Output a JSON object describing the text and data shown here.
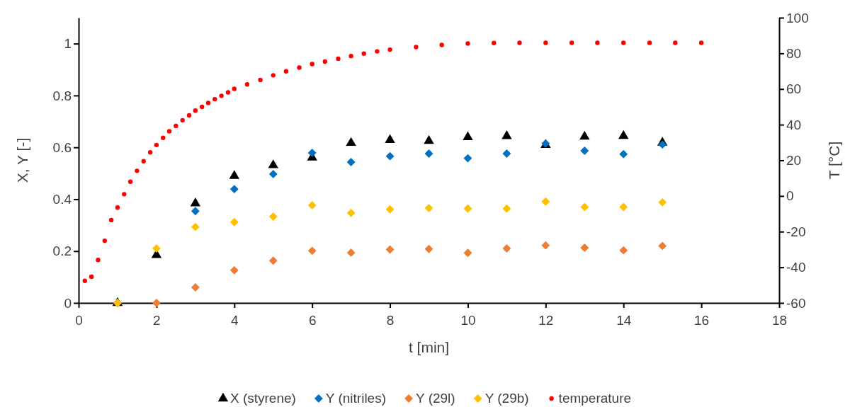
{
  "chart_data": {
    "type": "scatter",
    "xlabel": "t [min]",
    "ylabel": "X, Y [-]",
    "y2label": "T [°C]",
    "xlim": [
      0,
      18
    ],
    "xticks": [
      0,
      2,
      4,
      6,
      8,
      10,
      12,
      14,
      16,
      18
    ],
    "ylim": [
      0,
      1.1
    ],
    "yticks": [
      0,
      0.2,
      0.4,
      0.6,
      0.8,
      1
    ],
    "y2lim": [
      -60,
      100
    ],
    "y2ticks": [
      -60,
      -40,
      -20,
      0,
      20,
      40,
      60,
      80,
      100
    ],
    "grid": false,
    "legend": "bottom",
    "series": [
      {
        "name": "X (styrene)",
        "color": "#000000",
        "marker": "triangle",
        "x": [
          1,
          2,
          3,
          4,
          5,
          6,
          7,
          8,
          9,
          10,
          11,
          12,
          13,
          14,
          15
        ],
        "values": [
          0,
          0.185,
          0.384,
          0.49,
          0.531,
          0.561,
          0.617,
          0.628,
          0.625,
          0.639,
          0.643,
          0.609,
          0.641,
          0.644,
          0.618
        ]
      },
      {
        "name": "Y (nitriles)",
        "color": "#0070c0",
        "marker": "diamond",
        "x": [
          1,
          2,
          3,
          4,
          5,
          6,
          7,
          8,
          9,
          10,
          11,
          12,
          13,
          14,
          15
        ],
        "values": [
          0,
          null,
          0.354,
          0.439,
          0.497,
          0.579,
          0.543,
          0.566,
          0.576,
          0.558,
          0.576,
          0.615,
          0.587,
          0.574,
          0.611
        ]
      },
      {
        "name": "Y (29l)",
        "color": "#ed7d31",
        "marker": "diamond",
        "x": [
          1,
          2,
          3,
          4,
          5,
          6,
          7,
          8,
          9,
          10,
          11,
          12,
          13,
          14,
          15
        ],
        "values": [
          0,
          0,
          0.06,
          0.126,
          0.163,
          0.201,
          0.194,
          0.206,
          0.208,
          0.193,
          0.21,
          0.222,
          0.213,
          0.203,
          0.22
        ]
      },
      {
        "name": "Y (29b)",
        "color": "#ffc000",
        "marker": "diamond",
        "x": [
          1,
          2,
          3,
          4,
          5,
          6,
          7,
          8,
          9,
          10,
          11,
          12,
          13,
          14,
          15
        ],
        "values": [
          0,
          0.21,
          0.293,
          0.312,
          0.333,
          0.377,
          0.347,
          0.361,
          0.366,
          0.364,
          0.364,
          0.391,
          0.37,
          0.37,
          0.388
        ]
      },
      {
        "name": "temperature",
        "color": "#ff0000",
        "marker": "circle",
        "axis": "y2",
        "x": [
          0.16,
          0.33,
          0.5,
          0.67,
          0.84,
          1.0,
          1.17,
          1.33,
          1.5,
          1.67,
          1.84,
          2.0,
          2.17,
          2.33,
          2.5,
          2.67,
          2.84,
          3.0,
          3.17,
          3.33,
          3.5,
          3.67,
          3.84,
          4.0,
          4.33,
          4.67,
          5.0,
          5.33,
          5.67,
          6.0,
          6.33,
          6.67,
          7.0,
          7.33,
          7.67,
          8.0,
          8.67,
          9.33,
          10.0,
          10.67,
          11.33,
          12.0,
          12.67,
          13.33,
          14.0,
          14.67,
          15.33,
          16.0
        ],
        "values": [
          -47.6,
          -45.3,
          -35.9,
          -25.1,
          -13.5,
          -6.5,
          1.0,
          8.0,
          14.1,
          19.5,
          24.5,
          28.6,
          32.6,
          36.3,
          39.3,
          42.5,
          45.2,
          47.9,
          50.0,
          52.2,
          54.3,
          56.2,
          58.1,
          60.1,
          62.6,
          65.1,
          67.7,
          69.9,
          72.0,
          74.0,
          75.4,
          77.0,
          78.5,
          79.9,
          81.1,
          82.1,
          83.5,
          84.7,
          85.5,
          85.8,
          85.9,
          85.9,
          85.9,
          85.9,
          85.9,
          85.9,
          85.9,
          85.9
        ]
      }
    ]
  }
}
